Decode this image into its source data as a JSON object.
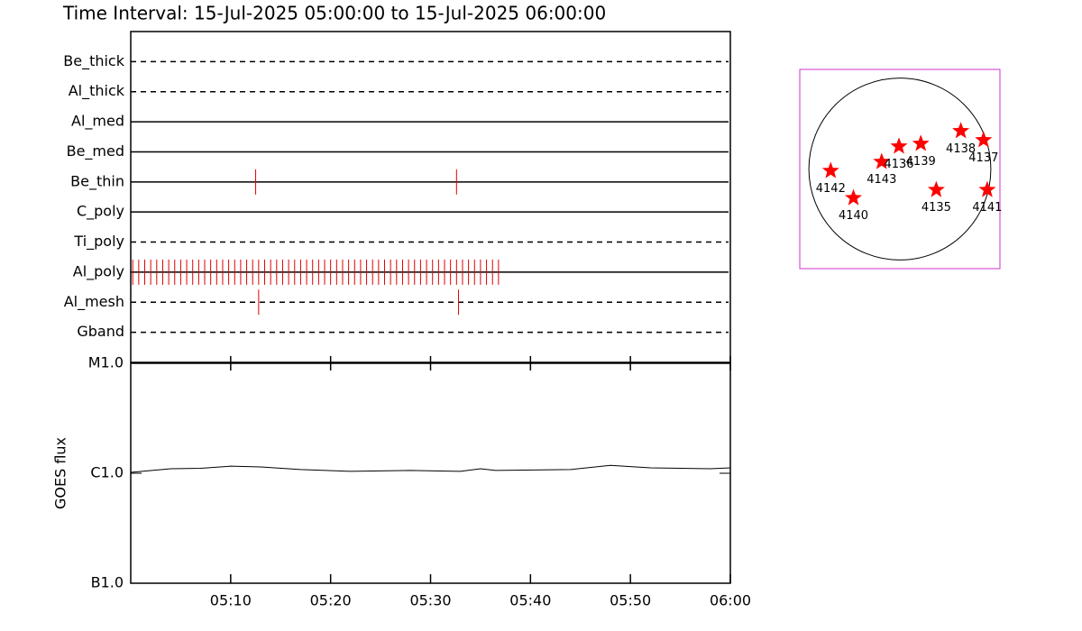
{
  "title": "Time Interval: 15-Jul-2025 05:00:00 to 15-Jul-2025 06:00:00",
  "chart_data": [
    {
      "type": "timeline",
      "color": "#e00000",
      "xlim": [
        0,
        60
      ],
      "series": [
        {
          "name": "Be_thick",
          "dashed": true,
          "values": []
        },
        {
          "name": "Al_thick",
          "dashed": true,
          "values": []
        },
        {
          "name": "Al_med",
          "dashed": false,
          "values": []
        },
        {
          "name": "Be_med",
          "dashed": false,
          "values": []
        },
        {
          "name": "Be_thin",
          "dashed": false,
          "values": [
            12.5,
            32.6
          ]
        },
        {
          "name": "C_poly",
          "dashed": false,
          "values": []
        },
        {
          "name": "Ti_poly",
          "dashed": true,
          "values": []
        },
        {
          "name": "Al_poly",
          "dashed": false,
          "values": [
            0.2,
            0.8,
            1.4,
            2.0,
            2.6,
            3.2,
            3.8,
            4.4,
            5.0,
            5.6,
            6.2,
            6.8,
            7.4,
            8.0,
            8.6,
            9.2,
            9.8,
            10.4,
            11.0,
            11.6,
            12.2,
            12.8,
            13.4,
            14.0,
            14.6,
            15.2,
            15.8,
            16.4,
            17.0,
            17.6,
            18.2,
            18.8,
            19.4,
            20.0,
            20.6,
            21.2,
            21.8,
            22.4,
            23.0,
            23.6,
            24.2,
            24.8,
            25.4,
            26.0,
            26.6,
            27.2,
            27.8,
            28.4,
            29.0,
            29.6,
            30.2,
            30.8,
            31.4,
            32.0,
            32.6,
            33.2,
            33.8,
            34.4,
            35.0,
            35.6,
            36.2,
            36.8
          ]
        },
        {
          "name": "Al_mesh",
          "dashed": true,
          "values": [
            12.8,
            32.8
          ]
        },
        {
          "name": "Gband",
          "dashed": true,
          "values": []
        }
      ]
    },
    {
      "type": "line",
      "ylabel": "GOES flux",
      "log_y": true,
      "color": "#000000",
      "x": [
        0,
        4,
        7,
        10,
        13,
        17,
        22,
        28,
        33,
        35,
        36.5,
        44,
        48,
        52,
        58,
        60
      ],
      "values": [
        1.02e-06,
        1.1e-06,
        1.11e-06,
        1.16e-06,
        1.14e-06,
        1.08e-06,
        1.04e-06,
        1.06e-06,
        1.04e-06,
        1.1e-06,
        1.06e-06,
        1.08e-06,
        1.18e-06,
        1.12e-06,
        1.1e-06,
        1.12e-06
      ],
      "xlim": [
        0,
        60
      ],
      "xticks": [
        {
          "value": 10,
          "label": "05:10"
        },
        {
          "value": 20,
          "label": "05:20"
        },
        {
          "value": 30,
          "label": "05:30"
        },
        {
          "value": 40,
          "label": "05:40"
        },
        {
          "value": 50,
          "label": "05:50"
        },
        {
          "value": 60,
          "label": "06:00"
        }
      ],
      "ylim": [
        1e-07,
        1e-05
      ],
      "yticks": [
        {
          "value": 1e-07,
          "label": "B1.0"
        },
        {
          "value": 1e-06,
          "label": "C1.0"
        },
        {
          "value": 1e-05,
          "label": "M1.0"
        }
      ]
    },
    {
      "type": "scatter",
      "color": "#ff0000",
      "frame_color": "#cc33cc",
      "xlim": [
        -1.1,
        1.1
      ],
      "ylim": [
        -1.1,
        1.1
      ],
      "labels": [
        "4142",
        "4140",
        "4143",
        "4136",
        "4139",
        "4138",
        "4137",
        "4135",
        "4141"
      ],
      "x": [
        -0.76,
        -0.51,
        -0.2,
        -0.01,
        0.23,
        0.67,
        0.92,
        0.4,
        0.96
      ],
      "y": [
        -0.02,
        -0.32,
        0.08,
        0.25,
        0.28,
        0.42,
        0.32,
        -0.23,
        -0.23
      ]
    }
  ]
}
